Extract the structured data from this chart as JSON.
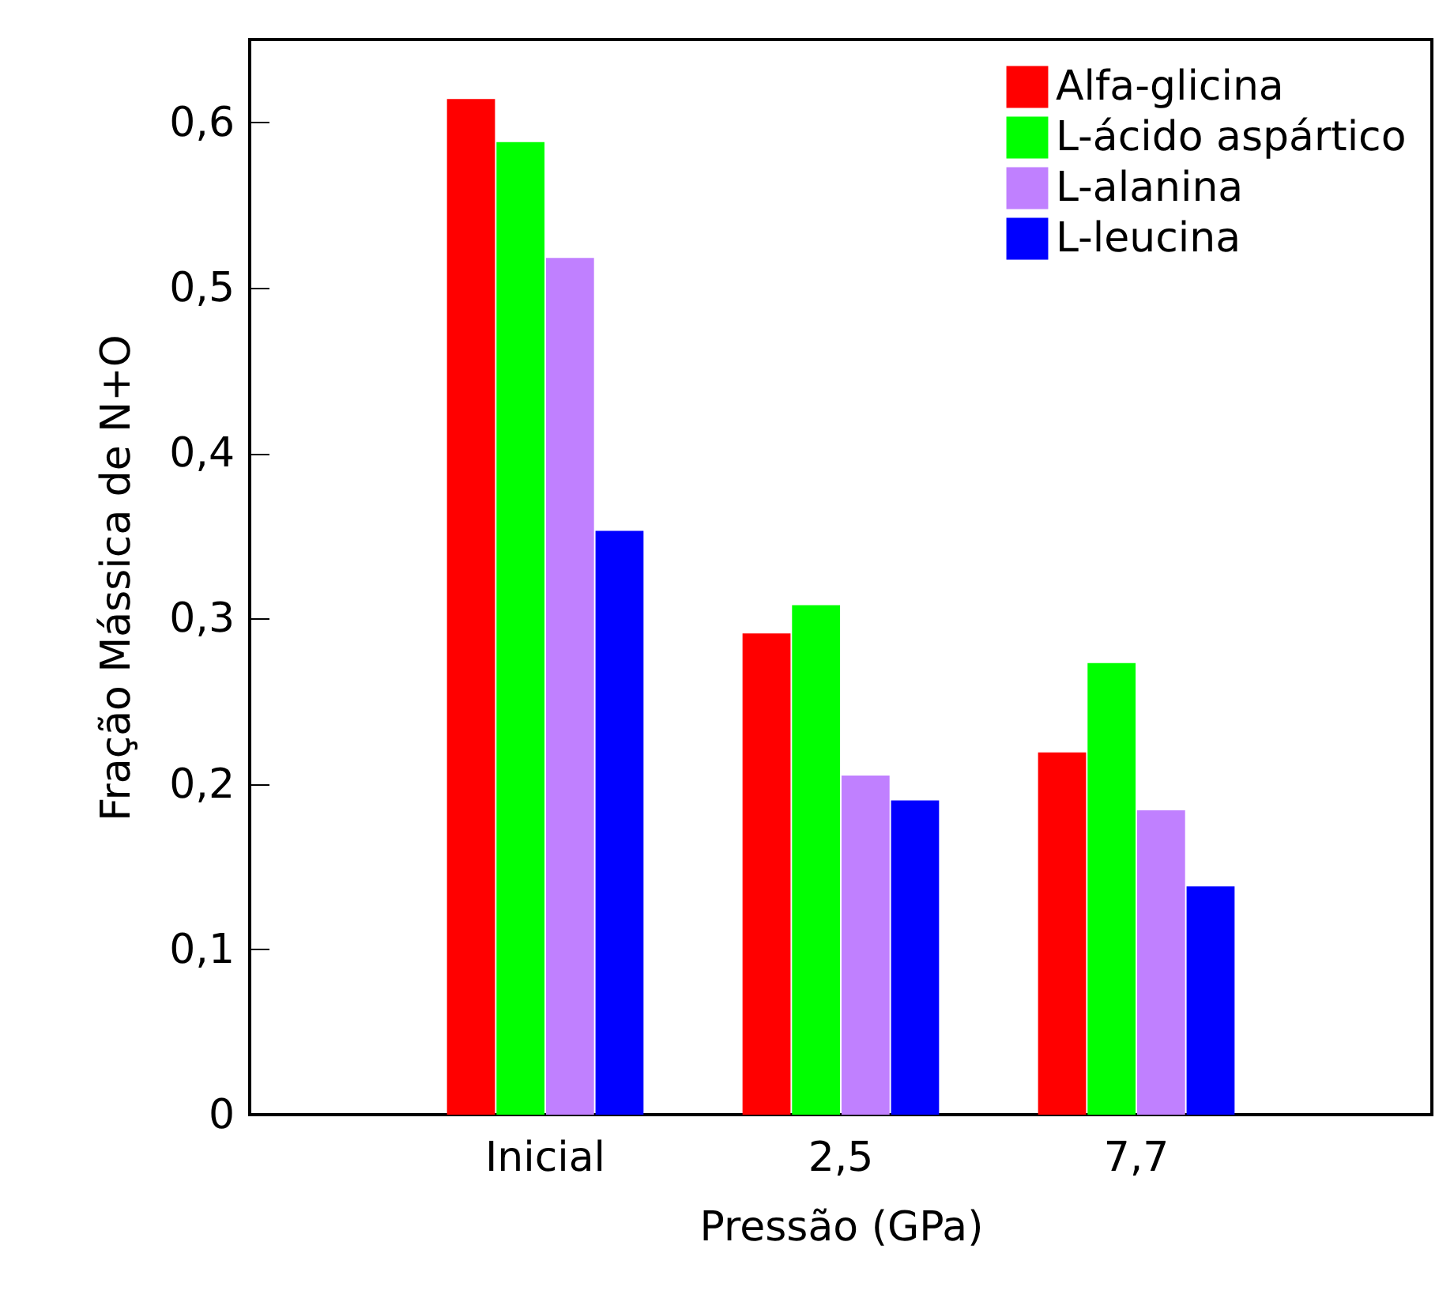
{
  "chart_data": {
    "type": "bar",
    "xlabel": "Pressão (GPa)",
    "ylabel": "Fração Mássica de N+O",
    "categories": [
      "Inicial",
      "2,5",
      "7,7"
    ],
    "series": [
      {
        "name": "Alfa-glicina",
        "color": "#ff0000",
        "values": [
          0.614,
          0.291,
          0.219
        ]
      },
      {
        "name": "L-ácido aspártico",
        "color": "#00ff00",
        "values": [
          0.588,
          0.308,
          0.273
        ]
      },
      {
        "name": "L-alanina",
        "color": "#c080ff",
        "values": [
          0.518,
          0.205,
          0.184
        ]
      },
      {
        "name": "L-leucina",
        "color": "#0000ff",
        "values": [
          0.353,
          0.19,
          0.138
        ]
      }
    ],
    "ylim": [
      0,
      0.65
    ],
    "yticks": [
      {
        "value": 0,
        "label": "0"
      },
      {
        "value": 0.1,
        "label": "0,1"
      },
      {
        "value": 0.2,
        "label": "0,2"
      },
      {
        "value": 0.3,
        "label": "0,3"
      },
      {
        "value": 0.4,
        "label": "0,4"
      },
      {
        "value": 0.5,
        "label": "0,5"
      },
      {
        "value": 0.6,
        "label": "0,6"
      }
    ],
    "legend": "top right",
    "grid": false
  }
}
